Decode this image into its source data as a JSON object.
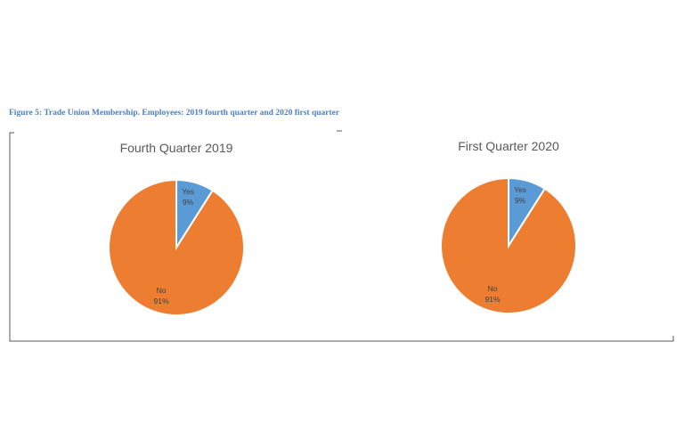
{
  "figure_caption": "Figure 5: Trade Union Membership. Employees: 2019 fourth quarter and 2020 first quarter",
  "colors": {
    "yes": "#5b9bd5",
    "no": "#ed7d31",
    "title": "#595959",
    "caption": "#4f81bd"
  },
  "chart_data": [
    {
      "type": "pie",
      "title": "Fourth Quarter 2019",
      "slices": [
        {
          "label": "Yes",
          "value": 9,
          "value_label": "9%"
        },
        {
          "label": "No",
          "value": 91,
          "value_label": "91%"
        }
      ]
    },
    {
      "type": "pie",
      "title": "First Quarter 2020",
      "slices": [
        {
          "label": "Yes",
          "value": 9,
          "value_label": "9%"
        },
        {
          "label": "No",
          "value": 91,
          "value_label": "91%"
        }
      ]
    }
  ]
}
